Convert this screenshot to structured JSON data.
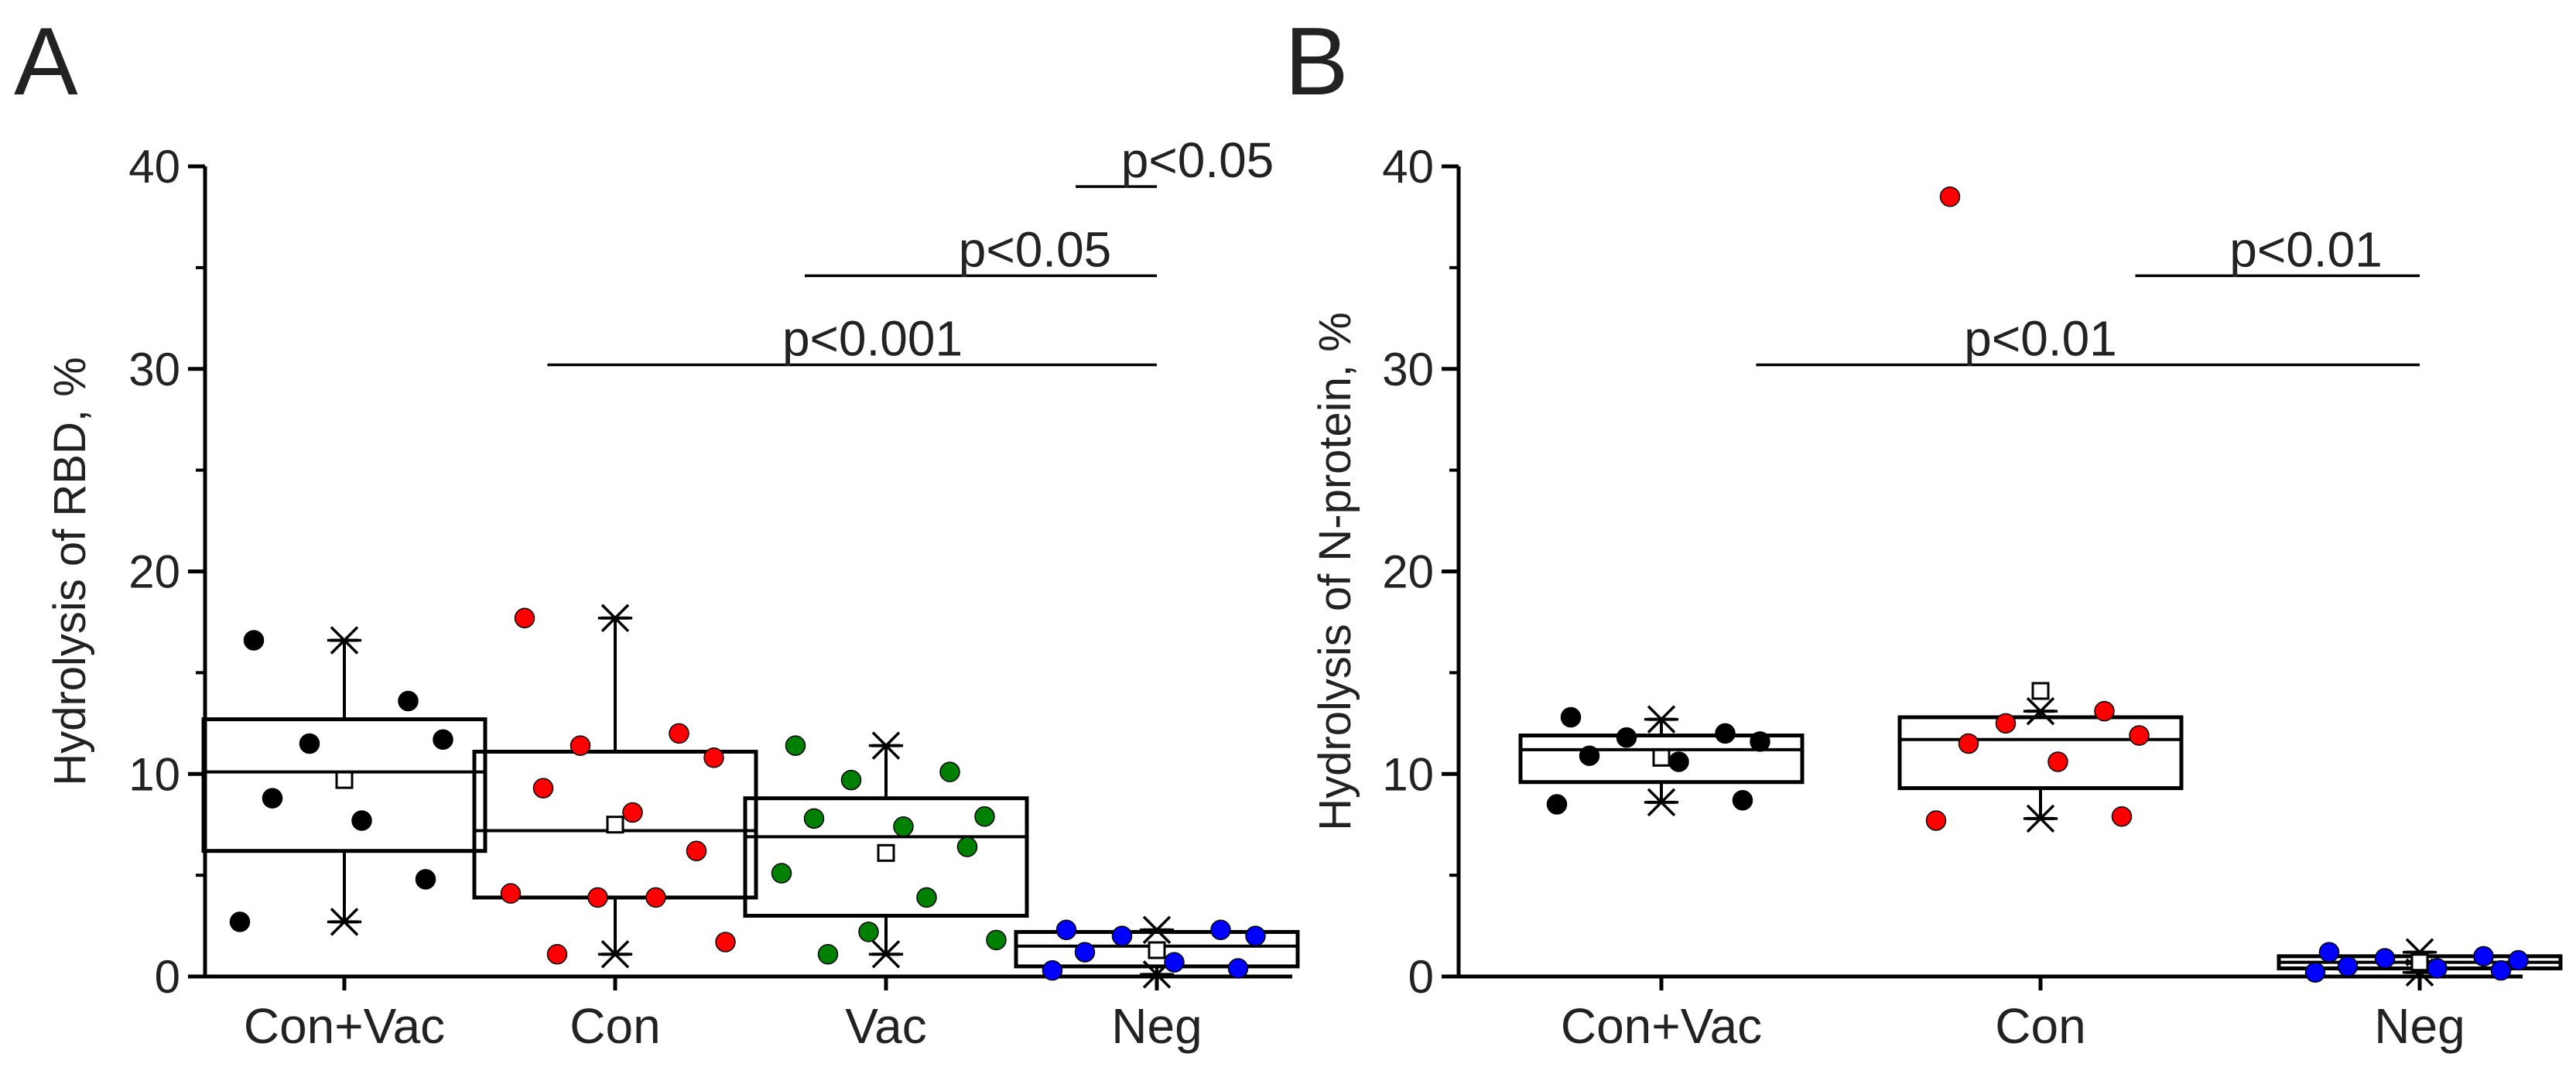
{
  "chart_data": [
    {
      "panel": "A",
      "type": "box",
      "ylabel": "Hydrolysis of RBD, %",
      "ylim": [
        0,
        40
      ],
      "yticks": [
        "0",
        "10",
        "20",
        "30",
        "40"
      ],
      "categories": [
        "Con+Vac",
        "Con",
        "Vac",
        "Neg"
      ],
      "series": [
        {
          "category": "Con+Vac",
          "color": "#000000",
          "box": {
            "q1": 6.2,
            "median": 10.1,
            "q3": 12.7,
            "mean": 9.7,
            "whisker_low": 2.7,
            "whisker_high": 16.6
          },
          "points": [
            16.6,
            13.6,
            11.5,
            11.7,
            8.8,
            7.7,
            4.8,
            2.7
          ]
        },
        {
          "category": "Con",
          "color": "#ff0000",
          "box": {
            "q1": 3.9,
            "median": 7.2,
            "q3": 11.1,
            "mean": 7.5,
            "whisker_low": 1.1,
            "whisker_high": 17.7
          },
          "points": [
            17.7,
            12.0,
            11.4,
            10.8,
            9.3,
            8.1,
            6.2,
            4.1,
            3.9,
            3.9,
            1.7,
            1.1
          ]
        },
        {
          "category": "Vac",
          "color": "#008000",
          "box": {
            "q1": 3.0,
            "median": 6.9,
            "q3": 8.8,
            "mean": 6.1,
            "whisker_low": 1.1,
            "whisker_high": 11.4
          },
          "points": [
            11.4,
            10.1,
            9.7,
            7.9,
            7.8,
            7.4,
            6.4,
            5.1,
            3.9,
            2.2,
            1.8,
            1.1
          ]
        },
        {
          "category": "Neg",
          "color": "#0000ff",
          "box": {
            "q1": 0.5,
            "median": 1.5,
            "q3": 2.2,
            "mean": 1.3,
            "whisker_low": 0.1,
            "whisker_high": 2.3
          },
          "points": [
            2.3,
            2.3,
            2.0,
            2.0,
            1.2,
            0.7,
            0.4,
            0.3
          ]
        }
      ],
      "annotations": [
        {
          "label": "p<0.05",
          "from": "Vac",
          "to": "Neg",
          "y": 39.0,
          "x_start": 2.7,
          "label_x": 3.15
        },
        {
          "label": "p<0.05",
          "from": "Con",
          "to": "Neg",
          "y": 34.6,
          "x_start": 1.7,
          "label_x": 2.55
        },
        {
          "label": "p<0.001",
          "from": "Con+Vac",
          "to": "Neg",
          "y": 30.2,
          "x_start": 0.75,
          "label_x": 1.95
        }
      ]
    },
    {
      "panel": "B",
      "type": "box",
      "ylabel": "Hydrolysis of N-protein, %",
      "ylim": [
        0,
        40
      ],
      "yticks": [
        "0",
        "10",
        "20",
        "30",
        "40"
      ],
      "categories": [
        "Con+Vac",
        "Con",
        "Neg"
      ],
      "series": [
        {
          "category": "Con+Vac",
          "color": "#000000",
          "box": {
            "q1": 9.6,
            "median": 11.2,
            "q3": 11.9,
            "mean": 10.8,
            "whisker_low": 8.6,
            "whisker_high": 12.7
          },
          "points": [
            12.8,
            12.0,
            11.8,
            11.6,
            10.9,
            10.6,
            8.7,
            8.5
          ]
        },
        {
          "category": "Con",
          "color": "#ff0000",
          "box": {
            "q1": 9.3,
            "median": 11.7,
            "q3": 12.8,
            "mean": 14.1,
            "whisker_low": 7.8,
            "whisker_high": 13.1
          },
          "points": [
            38.5,
            13.1,
            12.5,
            11.9,
            11.5,
            10.6,
            7.9,
            7.7
          ]
        },
        {
          "category": "Neg",
          "color": "#0000ff",
          "box": {
            "q1": 0.4,
            "median": 0.7,
            "q3": 1.0,
            "mean": 0.7,
            "whisker_low": 0.2,
            "whisker_high": 1.2
          },
          "points": [
            1.2,
            1.0,
            0.9,
            0.8,
            0.5,
            0.4,
            0.3,
            0.2
          ]
        }
      ],
      "annotations": [
        {
          "label": "p<0.01",
          "from": "Con",
          "to": "Neg",
          "y": 34.6,
          "x_start": 1.25,
          "label_x": 1.7
        },
        {
          "label": "p<0.01",
          "from": "Con+Vac",
          "to": "Neg",
          "y": 30.2,
          "x_start": 0.25,
          "label_x": 1.0
        }
      ]
    }
  ]
}
